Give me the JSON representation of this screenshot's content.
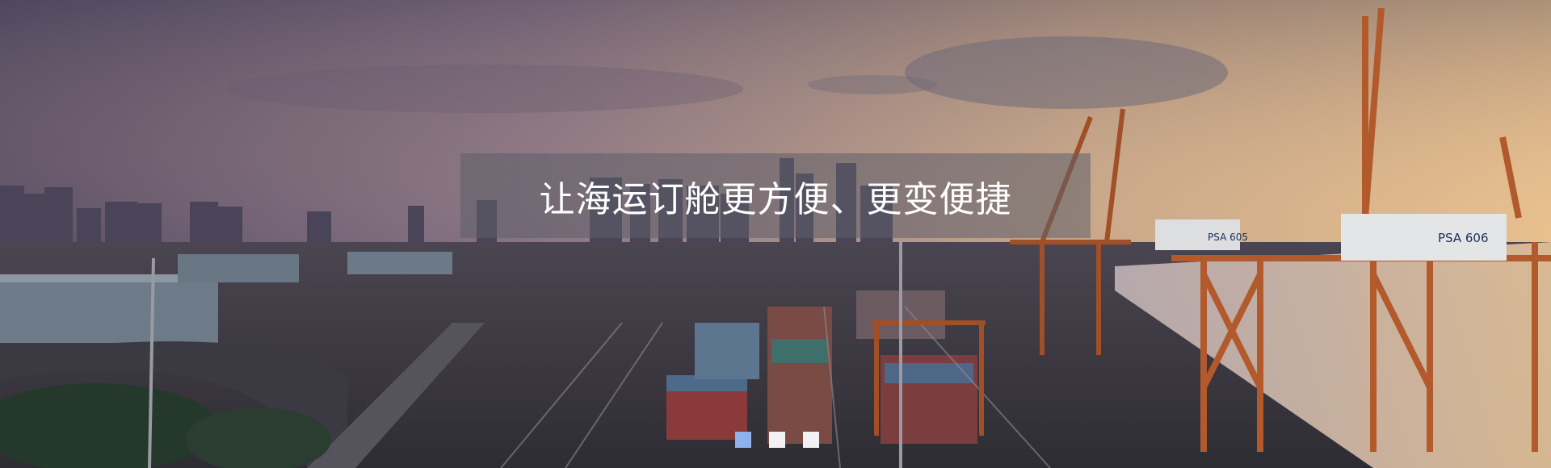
{
  "hero": {
    "headline": "让海运订舱更方便、更变便捷",
    "image_description_icon": "port-container-terminal-photo",
    "crane_labels": [
      "PSA 605",
      "PSA 606"
    ],
    "slides": [
      {
        "active": true
      },
      {
        "active": false
      },
      {
        "active": false
      }
    ],
    "colors": {
      "overlay": "#5f5f69",
      "headline": "#ffffff",
      "dot_active": "#8fb1ee",
      "dot_inactive": "#f2f2f5"
    }
  }
}
